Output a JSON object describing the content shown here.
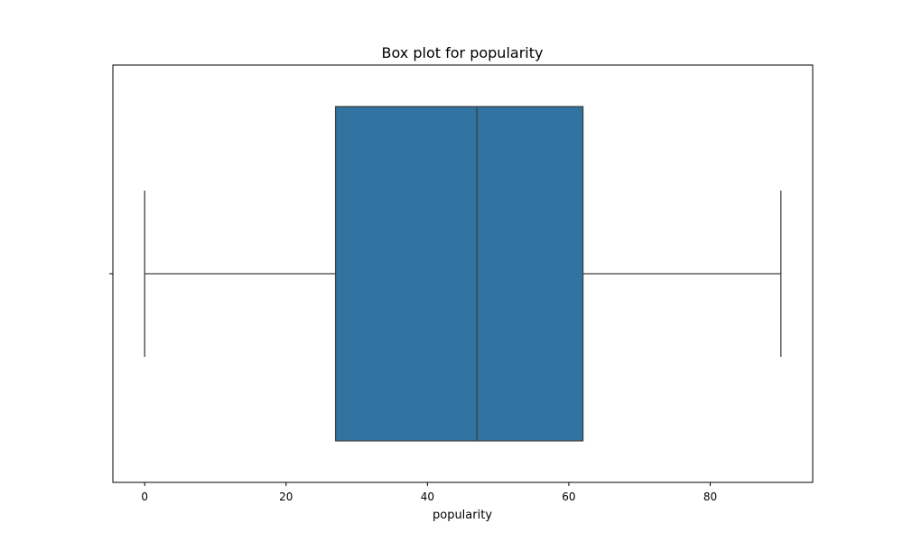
{
  "chart_data": {
    "type": "box",
    "title": "Box plot for popularity",
    "xlabel": "popularity",
    "ylabel": "",
    "xlim": [
      -4.5,
      94.5
    ],
    "xticks": [
      0,
      20,
      40,
      60,
      80
    ],
    "xtick_labels": [
      "0",
      "20",
      "40",
      "60",
      "80"
    ],
    "grid": false,
    "box": {
      "whisker_low": 0,
      "q1": 27,
      "median": 47,
      "q3": 62,
      "whisker_high": 90
    },
    "colors": {
      "box_fill": "#3274a1",
      "line": "#3f3f3f",
      "frame": "#000000"
    }
  }
}
